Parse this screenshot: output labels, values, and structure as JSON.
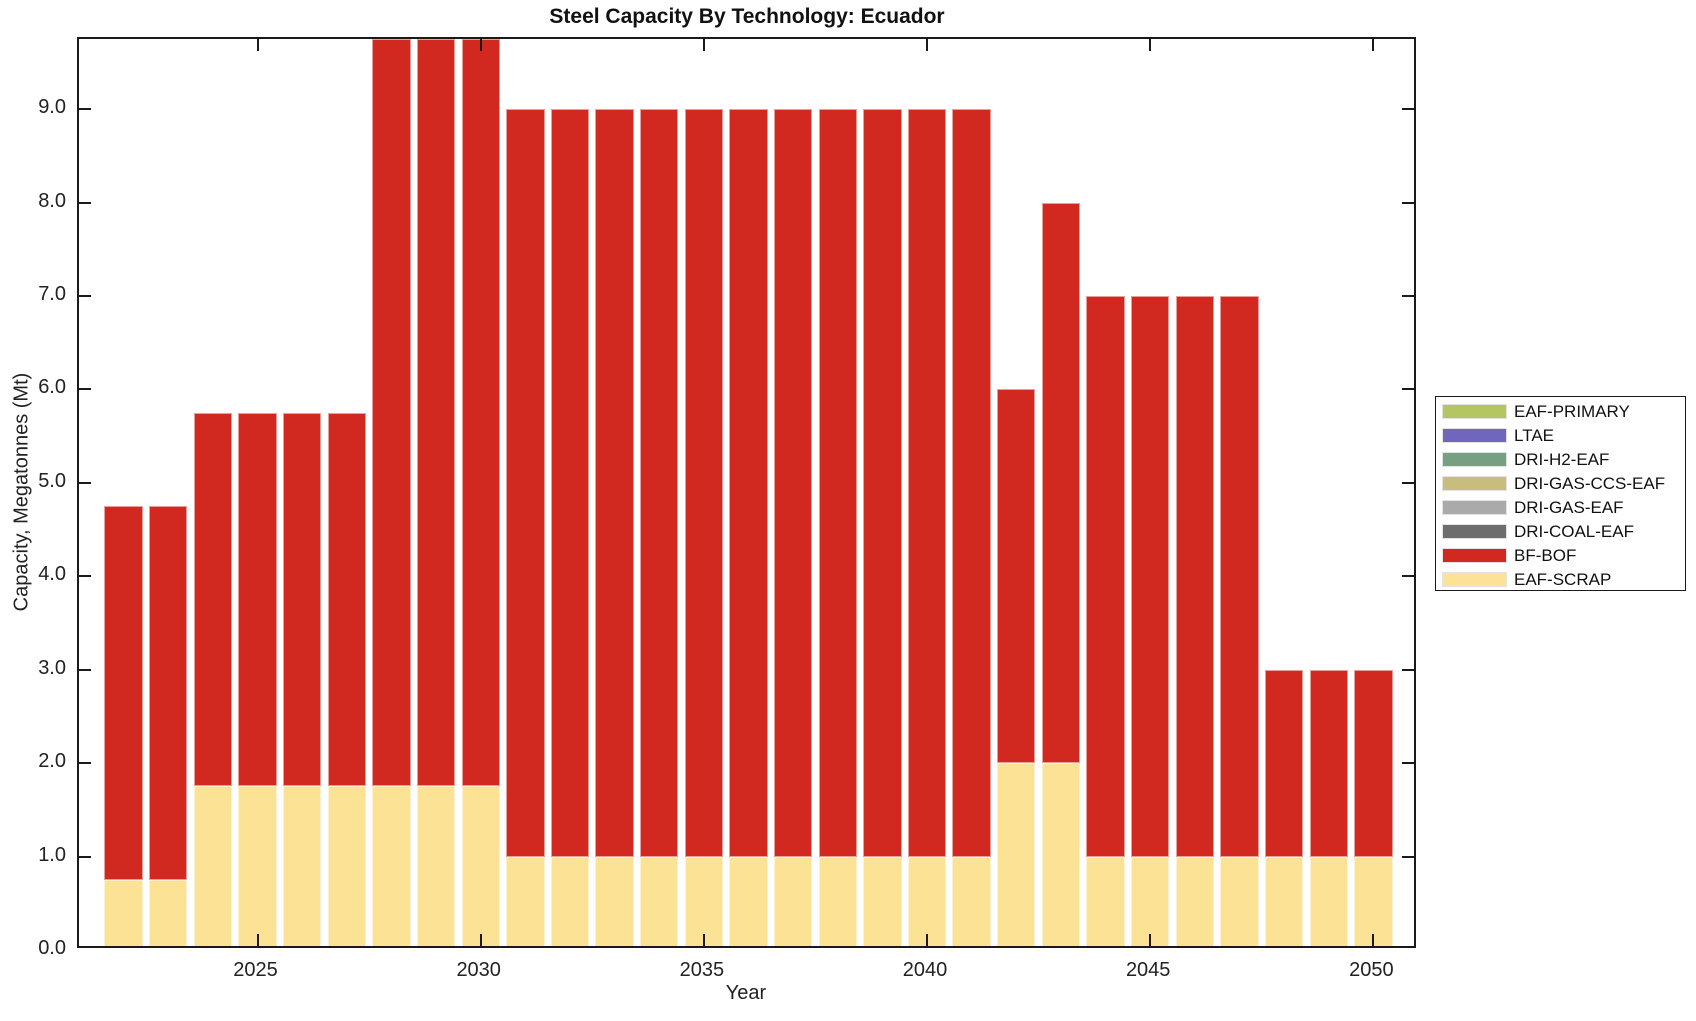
{
  "title": "Steel Capacity By Technology: Ecuador",
  "axes": {
    "xlabel": "Year",
    "ylabel": "Capacity, Megatonnes (Mt)"
  },
  "colors": {
    "background": "#ffffff",
    "frame": "#1a1a1a",
    "text": "#222222"
  },
  "chart_data": {
    "type": "bar",
    "stacked": true,
    "title": "Steel Capacity By Technology: Ecuador",
    "xlabel": "Year",
    "ylabel": "Capacity, Megatonnes (Mt)",
    "grid": false,
    "xlim": [
      2021,
      2051
    ],
    "ylim": [
      0,
      9.75
    ],
    "bar_width_years": 0.86,
    "x": [
      2022,
      2023,
      2024,
      2025,
      2026,
      2027,
      2028,
      2029,
      2030,
      2031,
      2032,
      2033,
      2034,
      2035,
      2036,
      2037,
      2038,
      2039,
      2040,
      2041,
      2042,
      2043,
      2044,
      2045,
      2046,
      2047,
      2048,
      2049,
      2050
    ],
    "series": [
      {
        "name": "EAF-SCRAP",
        "color": "#fbe295",
        "values": [
          0.75,
          0.75,
          1.75,
          1.75,
          1.75,
          1.75,
          1.75,
          1.75,
          1.75,
          1.0,
          1.0,
          1.0,
          1.0,
          1.0,
          1.0,
          1.0,
          1.0,
          1.0,
          1.0,
          1.0,
          2.0,
          2.0,
          1.0,
          1.0,
          1.0,
          1.0,
          1.0,
          1.0,
          1.0
        ]
      },
      {
        "name": "BF-BOF",
        "color": "#d1281f",
        "values": [
          4.0,
          4.0,
          4.0,
          4.0,
          4.0,
          4.0,
          8.0,
          8.0,
          8.0,
          8.0,
          8.0,
          8.0,
          8.0,
          8.0,
          8.0,
          8.0,
          8.0,
          8.0,
          8.0,
          8.0,
          4.0,
          6.0,
          6.0,
          6.0,
          6.0,
          6.0,
          2.0,
          2.0,
          2.0
        ]
      },
      {
        "name": "DRI-COAL-EAF",
        "color": "#6d6d6d",
        "values": [
          0,
          0,
          0,
          0,
          0,
          0,
          0,
          0,
          0,
          0,
          0,
          0,
          0,
          0,
          0,
          0,
          0,
          0,
          0,
          0,
          0,
          0,
          0,
          0,
          0,
          0,
          0,
          0,
          0
        ]
      },
      {
        "name": "DRI-GAS-EAF",
        "color": "#aaaaaa",
        "values": [
          0,
          0,
          0,
          0,
          0,
          0,
          0,
          0,
          0,
          0,
          0,
          0,
          0,
          0,
          0,
          0,
          0,
          0,
          0,
          0,
          0,
          0,
          0,
          0,
          0,
          0,
          0,
          0,
          0
        ]
      },
      {
        "name": "DRI-GAS-CCS-EAF",
        "color": "#c8bd7c",
        "values": [
          0,
          0,
          0,
          0,
          0,
          0,
          0,
          0,
          0,
          0,
          0,
          0,
          0,
          0,
          0,
          0,
          0,
          0,
          0,
          0,
          0,
          0,
          0,
          0,
          0,
          0,
          0,
          0,
          0
        ]
      },
      {
        "name": "DRI-H2-EAF",
        "color": "#77a083",
        "values": [
          0,
          0,
          0,
          0,
          0,
          0,
          0,
          0,
          0,
          0,
          0,
          0,
          0,
          0,
          0,
          0,
          0,
          0,
          0,
          0,
          0,
          0,
          0,
          0,
          0,
          0,
          0,
          0,
          0
        ]
      },
      {
        "name": "LTAE",
        "color": "#7166bd",
        "values": [
          0,
          0,
          0,
          0,
          0,
          0,
          0,
          0,
          0,
          0,
          0,
          0,
          0,
          0,
          0,
          0,
          0,
          0,
          0,
          0,
          0,
          0,
          0,
          0,
          0,
          0,
          0,
          0,
          0
        ]
      },
      {
        "name": "EAF-PRIMARY",
        "color": "#b3c662",
        "values": [
          0,
          0,
          0,
          0,
          0,
          0,
          0,
          0,
          0,
          0,
          0,
          0,
          0,
          0,
          0,
          0,
          0,
          0,
          0,
          0,
          0,
          0,
          0,
          0,
          0,
          0,
          0,
          0,
          0
        ]
      }
    ],
    "yticks": [
      {
        "value": 0,
        "label": "0.0"
      },
      {
        "value": 1,
        "label": "1.0"
      },
      {
        "value": 2,
        "label": "2.0"
      },
      {
        "value": 3,
        "label": "3.0"
      },
      {
        "value": 4,
        "label": "4.0"
      },
      {
        "value": 5,
        "label": "5.0"
      },
      {
        "value": 6,
        "label": "6.0"
      },
      {
        "value": 7,
        "label": "7.0"
      },
      {
        "value": 8,
        "label": "8.0"
      },
      {
        "value": 9,
        "label": "9.0"
      }
    ],
    "xticks": [
      {
        "value": 2025,
        "label": "2025"
      },
      {
        "value": 2030,
        "label": "2030"
      },
      {
        "value": 2035,
        "label": "2035"
      },
      {
        "value": 2040,
        "label": "2040"
      },
      {
        "value": 2045,
        "label": "2045"
      },
      {
        "value": 2050,
        "label": "2050"
      }
    ],
    "legend": {
      "position": "right-outside",
      "entries": [
        {
          "name": "EAF-PRIMARY",
          "color": "#b3c662"
        },
        {
          "name": "LTAE",
          "color": "#7166bd"
        },
        {
          "name": "DRI-H2-EAF",
          "color": "#77a083"
        },
        {
          "name": "DRI-GAS-CCS-EAF",
          "color": "#c8bd7c"
        },
        {
          "name": "DRI-GAS-EAF",
          "color": "#aaaaaa"
        },
        {
          "name": "DRI-COAL-EAF",
          "color": "#6d6d6d"
        },
        {
          "name": "BF-BOF",
          "color": "#d1281f"
        },
        {
          "name": "EAF-SCRAP",
          "color": "#fbe295"
        }
      ]
    }
  }
}
